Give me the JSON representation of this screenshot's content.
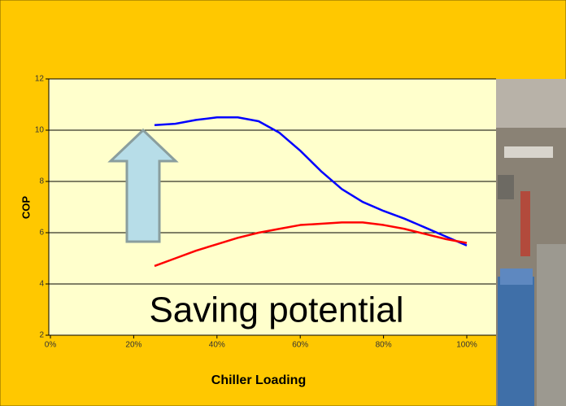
{
  "chart_data": {
    "type": "line",
    "x_label": "Chiller Loading",
    "y_label": "COP",
    "annotation": "Saving potential",
    "x": [
      25,
      30,
      35,
      40,
      45,
      50,
      55,
      60,
      65,
      70,
      75,
      80,
      85,
      90,
      95,
      100
    ],
    "series": [
      {
        "color": "#0000ff",
        "values": [
          10.2,
          10.25,
          10.4,
          10.5,
          10.5,
          10.35,
          9.9,
          9.2,
          8.4,
          7.7,
          7.2,
          6.85,
          6.55,
          6.2,
          5.85,
          5.5
        ]
      },
      {
        "color": "#ff0000",
        "values": [
          4.7,
          5.0,
          5.3,
          5.55,
          5.8,
          6.0,
          6.15,
          6.3,
          6.35,
          6.4,
          6.4,
          6.3,
          6.15,
          5.95,
          5.75,
          5.6
        ]
      }
    ],
    "xlim": [
      0,
      100
    ],
    "xticks": [
      {
        "value": 0,
        "label": "0%"
      },
      {
        "value": 20,
        "label": "20%"
      },
      {
        "value": 40,
        "label": "40%"
      },
      {
        "value": 60,
        "label": "60%"
      },
      {
        "value": 80,
        "label": "80%"
      },
      {
        "value": 100,
        "label": "100%"
      }
    ],
    "ylim": [
      2,
      12
    ],
    "yticks": [
      2,
      4,
      6,
      8,
      10,
      12
    ],
    "grid": true
  }
}
